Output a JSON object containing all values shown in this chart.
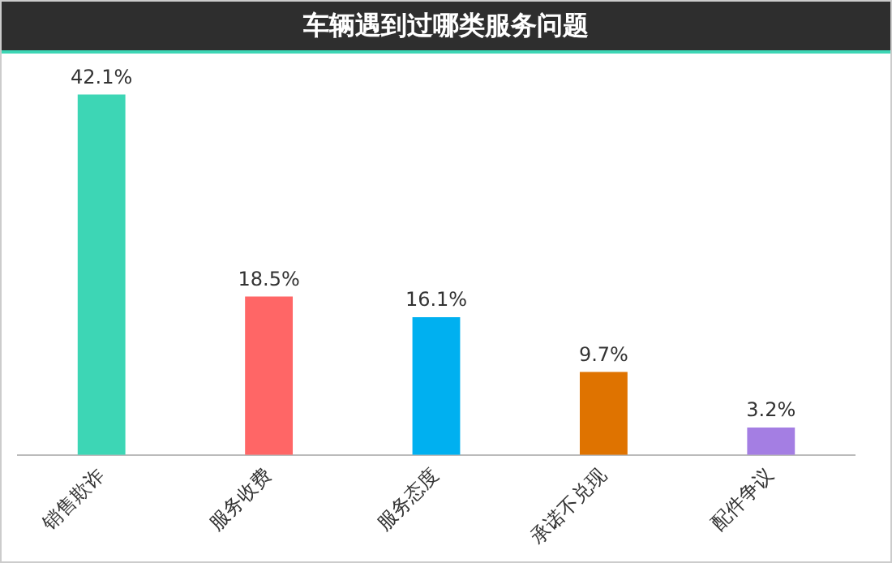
{
  "chart_data": {
    "type": "bar",
    "title": "车辆遇到过哪类服务问题",
    "categories": [
      "销售欺诈",
      "服务收费",
      "服务态度",
      "承诺不兑现",
      "配件争议"
    ],
    "values": [
      42.1,
      18.5,
      16.1,
      9.7,
      3.2
    ],
    "colors": [
      "#3dd6b5",
      "#ff6666",
      "#00b0f0",
      "#df7300",
      "#a47ee3"
    ],
    "value_labels": [
      "42.1%",
      "18.5%",
      "16.1%",
      "9.7%",
      "3.2%"
    ],
    "grid": false,
    "legend": false
  }
}
